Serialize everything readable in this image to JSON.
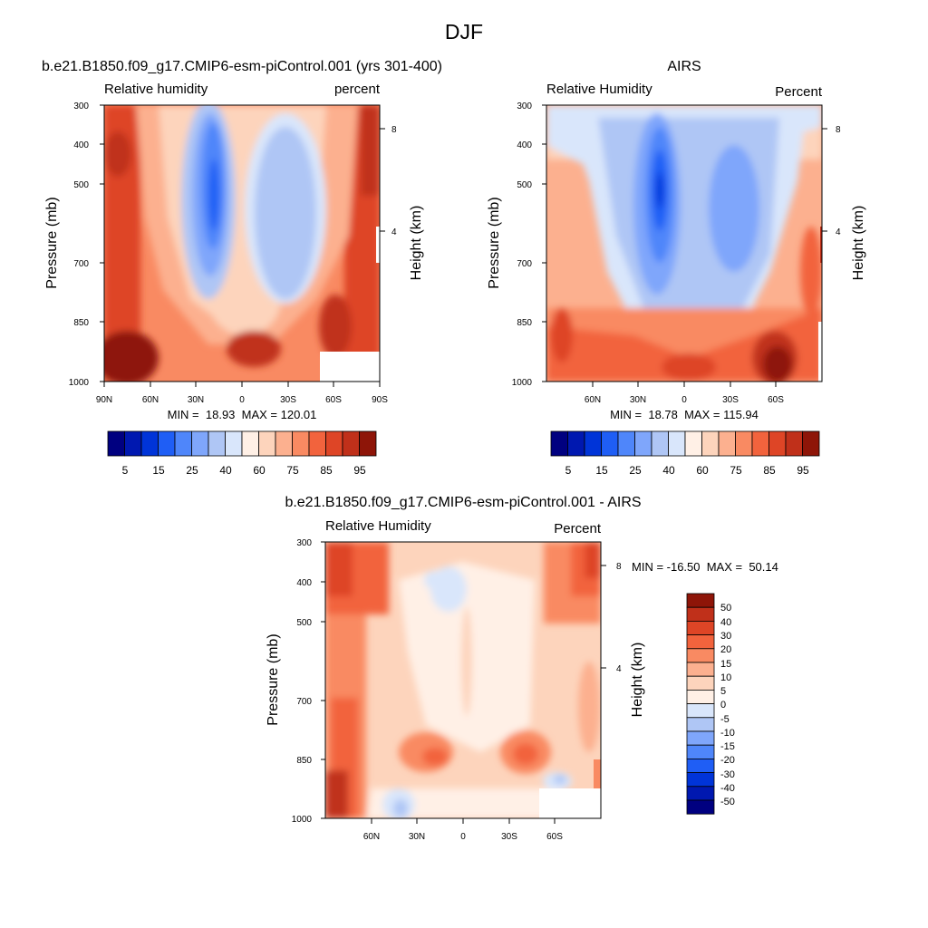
{
  "figure": {
    "title": "DJF"
  },
  "colors": {
    "rh_levels": [
      "#000080",
      "#0018b0",
      "#0034d8",
      "#1f5ef5",
      "#4f86fa",
      "#7fa6fb",
      "#afc6f5",
      "#d9e6fb",
      "#fff0e6",
      "#fdd4bc",
      "#fcb08f",
      "#f98a62",
      "#f2633d",
      "#de4526",
      "#c0301a",
      "#8e1508"
    ],
    "diff_levels": [
      "#000080",
      "#0018b0",
      "#0034d8",
      "#1f5ef5",
      "#4f86fa",
      "#7fa6fb",
      "#afc6f5",
      "#d9e6fb",
      "#fff0e6",
      "#fdd4bc",
      "#fcb08f",
      "#f98a62",
      "#f2633d",
      "#de4526",
      "#c0301a",
      "#8e1508"
    ]
  },
  "chart_data": [
    {
      "type": "heatmap",
      "title": "b.e21.B1850.f09_g17.CMIP6-esm-piControl.001 (yrs 301-400)",
      "left_label": "Relative humidity",
      "right_label": "percent",
      "ylabel": "Pressure (mb)",
      "ylabel_right": "Height (km)",
      "x_ticklabels": [
        "90N",
        "60N",
        "30N",
        "0",
        "30S",
        "60S",
        "90S"
      ],
      "x_range": [
        90,
        -90
      ],
      "y_ticklabels": [
        "300",
        "400",
        "500",
        "700",
        "850",
        "1000"
      ],
      "y_range": [
        1000,
        300
      ],
      "y_log": true,
      "height_ticks": [
        "8",
        "4"
      ],
      "stats": "MIN =  18.93  MAX = 120.01",
      "levels": [
        5,
        10,
        15,
        20,
        25,
        30,
        40,
        50,
        60,
        70,
        75,
        80,
        85,
        90,
        95
      ],
      "colorbar_labels": [
        "5",
        "15",
        "25",
        "40",
        "60",
        "75",
        "85",
        "95"
      ],
      "missing_region": {
        "lat": [
          -50,
          -90
        ],
        "pressure": [
          920,
          1000
        ]
      }
    },
    {
      "type": "heatmap",
      "title": "AIRS",
      "left_label": "Relative Humidity",
      "right_label": "Percent",
      "ylabel": "Pressure (mb)",
      "ylabel_right": "Height (km)",
      "x_ticklabels": [
        "60N",
        "30N",
        "0",
        "30S",
        "60S"
      ],
      "x_range": [
        90,
        -90
      ],
      "y_ticklabels": [
        "300",
        "400",
        "500",
        "700",
        "850",
        "1000"
      ],
      "y_range": [
        1000,
        300
      ],
      "y_log": true,
      "height_ticks": [
        "8",
        "4"
      ],
      "stats": "MIN =  18.78  MAX = 115.94",
      "levels": [
        5,
        10,
        15,
        20,
        25,
        30,
        40,
        50,
        60,
        70,
        75,
        80,
        85,
        90,
        95
      ],
      "colorbar_labels": [
        "5",
        "15",
        "25",
        "40",
        "60",
        "75",
        "85",
        "95"
      ]
    },
    {
      "type": "heatmap",
      "title": "b.e21.B1850.f09_g17.CMIP6-esm-piControl.001 - AIRS",
      "left_label": "Relative Humidity",
      "right_label": "Percent",
      "ylabel": "Pressure (mb)",
      "ylabel_right": "Height (km)",
      "x_ticklabels": [
        "60N",
        "30N",
        "0",
        "30S",
        "60S"
      ],
      "x_range": [
        90,
        -90
      ],
      "y_ticklabels": [
        "300",
        "400",
        "500",
        "700",
        "850",
        "1000"
      ],
      "y_range": [
        1000,
        300
      ],
      "y_log": true,
      "height_ticks": [
        "8",
        "4"
      ],
      "stats": "MIN = -16.50  MAX =  50.14",
      "levels": [
        -50,
        -40,
        -30,
        -20,
        -15,
        -10,
        -5,
        0,
        5,
        10,
        15,
        20,
        30,
        40,
        50
      ],
      "colorbar_labels": [
        "50",
        "40",
        "30",
        "20",
        "15",
        "10",
        "5",
        "0",
        "-5",
        "-10",
        "-15",
        "-20",
        "-30",
        "-40",
        "-50"
      ],
      "missing_region": {
        "lat": [
          -50,
          -90
        ],
        "pressure": [
          920,
          1000
        ]
      }
    }
  ]
}
